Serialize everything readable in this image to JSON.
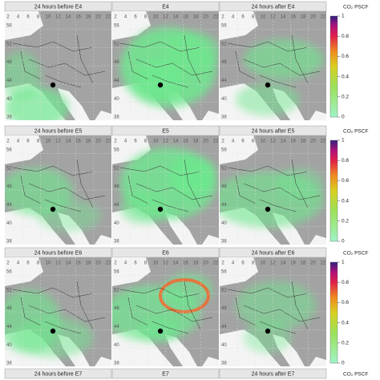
{
  "rows": [
    {
      "panels": [
        "24 hours before E4",
        "E4",
        "24 hours after E4"
      ]
    },
    {
      "panels": [
        "24 hours before E5",
        "E5",
        "24 hours after E5"
      ]
    },
    {
      "panels": [
        "24 hours before E6",
        "E6",
        "24 hours after E6"
      ]
    },
    {
      "panels": [
        "24 hours before E7",
        "E7",
        "24 hours after E7"
      ]
    }
  ],
  "colorbar": {
    "label": "CO₂ PSCF",
    "lim": [
      0,
      1
    ],
    "ticks": [
      0,
      0.2,
      0.4,
      0.6,
      0.8,
      1
    ]
  },
  "map_axes": {
    "lon_labels": [
      2,
      4,
      6,
      8,
      10,
      12,
      14,
      16,
      18,
      20,
      22
    ],
    "lat_labels": [
      56,
      52,
      48,
      44,
      40,
      38
    ]
  }
}
